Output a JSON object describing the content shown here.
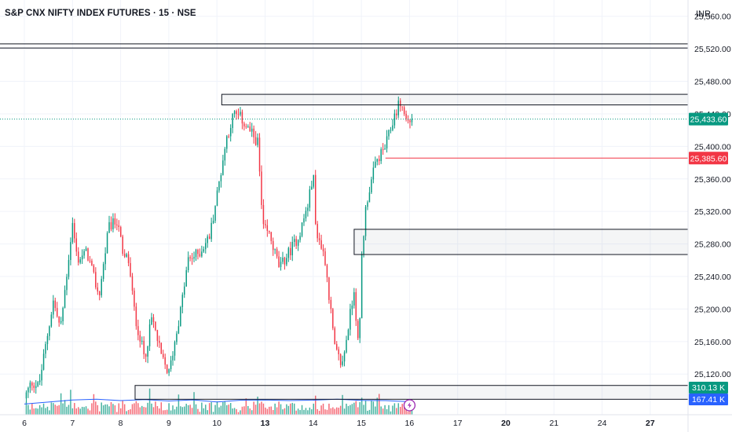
{
  "header": {
    "title": "S&P CNX NIFTY INDEX FUTURES · 15 · NSE",
    "currency": "INR"
  },
  "colors": {
    "up": "#089981",
    "down": "#f23645",
    "current_badge": "#089981",
    "level_line": "#f23645",
    "vol_ma": "#2962ff",
    "vol_ma_badge": "#2962ff"
  },
  "chart_data": {
    "type": "candlestick",
    "ylim": [
      25070,
      25580
    ],
    "y_ticks": [
      {
        "v": 25560,
        "label": "25,560.00"
      },
      {
        "v": 25520,
        "label": "25,520.00"
      },
      {
        "v": 25480,
        "label": "25,480.00"
      },
      {
        "v": 25440,
        "label": "25,440.00"
      },
      {
        "v": 25400,
        "label": "25,400.00"
      },
      {
        "v": 25360,
        "label": "25,360.00"
      },
      {
        "v": 25320,
        "label": "25,320.00"
      },
      {
        "v": 25280,
        "label": "25,280.00"
      },
      {
        "v": 25240,
        "label": "25,240.00"
      },
      {
        "v": 25200,
        "label": "25,200.00"
      },
      {
        "v": 25160,
        "label": "25,160.00"
      },
      {
        "v": 25120,
        "label": "25,120.00"
      }
    ],
    "x_ticks": [
      {
        "pos": 0,
        "label": "6",
        "bold": false
      },
      {
        "pos": 1,
        "label": "7",
        "bold": false
      },
      {
        "pos": 2,
        "label": "8",
        "bold": false
      },
      {
        "pos": 3,
        "label": "9",
        "bold": false
      },
      {
        "pos": 4,
        "label": "10",
        "bold": false
      },
      {
        "pos": 5,
        "label": "13",
        "bold": true
      },
      {
        "pos": 6,
        "label": "14",
        "bold": false
      },
      {
        "pos": 7,
        "label": "15",
        "bold": false
      },
      {
        "pos": 8,
        "label": "16",
        "bold": false
      },
      {
        "pos": 9,
        "label": "17",
        "bold": false
      },
      {
        "pos": 10,
        "label": "20",
        "bold": true
      },
      {
        "pos": 11,
        "label": "21",
        "bold": false
      },
      {
        "pos": 12,
        "label": "24",
        "bold": false
      },
      {
        "pos": 13,
        "label": "27",
        "bold": true
      }
    ],
    "price_path": [
      [
        0,
        25090
      ],
      [
        0.15,
        25110
      ],
      [
        0.3,
        25105
      ],
      [
        0.6,
        25210
      ],
      [
        0.75,
        25175
      ],
      [
        1.0,
        25305
      ],
      [
        1.1,
        25260
      ],
      [
        1.3,
        25270
      ],
      [
        1.55,
        25215
      ],
      [
        1.75,
        25300
      ],
      [
        1.95,
        25310
      ],
      [
        2.05,
        25260
      ],
      [
        2.15,
        25265
      ],
      [
        2.3,
        25190
      ],
      [
        2.5,
        25140
      ],
      [
        2.65,
        25190
      ],
      [
        2.85,
        25140
      ],
      [
        3.0,
        25120
      ],
      [
        3.25,
        25200
      ],
      [
        3.4,
        25260
      ],
      [
        3.65,
        25270
      ],
      [
        3.85,
        25290
      ],
      [
        4.0,
        25340
      ],
      [
        4.2,
        25410
      ],
      [
        4.35,
        25440
      ],
      [
        4.5,
        25435
      ],
      [
        4.6,
        25425
      ],
      [
        4.85,
        25405
      ],
      [
        4.95,
        25300
      ],
      [
        5.1,
        25290
      ],
      [
        5.3,
        25250
      ],
      [
        5.5,
        25270
      ],
      [
        5.7,
        25290
      ],
      [
        5.9,
        25330
      ],
      [
        6.0,
        25370
      ],
      [
        6.05,
        25300
      ],
      [
        6.1,
        25290
      ],
      [
        6.25,
        25260
      ],
      [
        6.45,
        25150
      ],
      [
        6.6,
        25130
      ],
      [
        6.85,
        25225
      ],
      [
        6.95,
        25140
      ],
      [
        7.0,
        25260
      ],
      [
        7.1,
        25330
      ],
      [
        7.3,
        25380
      ],
      [
        7.5,
        25400
      ],
      [
        7.7,
        25440
      ],
      [
        7.8,
        25455
      ],
      [
        7.95,
        25430
      ],
      [
        8.05,
        25433
      ]
    ],
    "volume_ma": [
      [
        0,
        185
      ],
      [
        0.5,
        220
      ],
      [
        1.0,
        255
      ],
      [
        1.5,
        270
      ],
      [
        2.0,
        245
      ],
      [
        2.5,
        262
      ],
      [
        3.0,
        238
      ],
      [
        3.5,
        258
      ],
      [
        4.0,
        222
      ],
      [
        4.5,
        252
      ],
      [
        5.0,
        256
      ],
      [
        5.5,
        246
      ],
      [
        6.0,
        252
      ],
      [
        6.5,
        268
      ],
      [
        7.0,
        250
      ],
      [
        7.5,
        246
      ],
      [
        7.9,
        230
      ],
      [
        8.05,
        238
      ]
    ],
    "vol_max": 600,
    "boxes": [
      {
        "x1": 4.1,
        "x2": 14,
        "y1": 25464,
        "y2": 25451
      },
      {
        "x1": 6.85,
        "x2": 14,
        "y1": 25298,
        "y2": 25267
      },
      {
        "x1": 2.3,
        "x2": 14,
        "y1": 25106,
        "y2": 25089
      }
    ],
    "hlines": [
      25526,
      25521
    ],
    "h_level": {
      "from": 7.5,
      "value": 25385.6
    },
    "current_price": 25433.6,
    "price_badges": [
      {
        "value": 25433.6,
        "label": "25,433.60",
        "color": "#089981"
      },
      {
        "value": 25385.6,
        "label": "25,385.60",
        "color": "#f23645"
      }
    ],
    "volume_badges": [
      {
        "vol": 310,
        "label": "310.13 K",
        "color": "#089981"
      },
      {
        "vol": 167,
        "label": "167.41 K",
        "color": "#2962ff"
      }
    ]
  }
}
